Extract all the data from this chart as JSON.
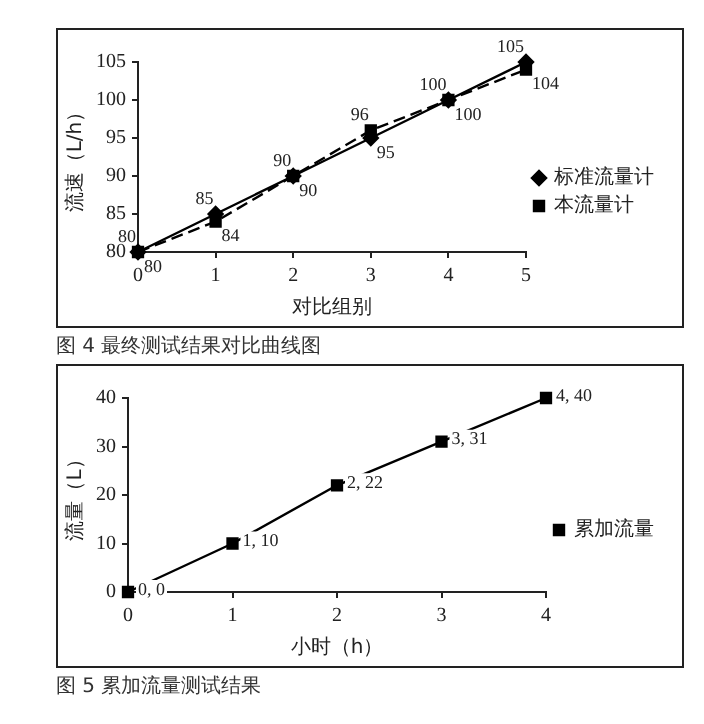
{
  "chart_data": [
    {
      "type": "line",
      "xlabel": "对比组别",
      "ylabel": "流速（L/h）",
      "x": [
        0,
        1,
        2,
        3,
        4,
        5
      ],
      "xlim": [
        0,
        5
      ],
      "xticks": [
        0,
        1,
        2,
        3,
        4,
        5
      ],
      "ylim": [
        80,
        105
      ],
      "yticks": [
        80,
        85,
        90,
        95,
        100,
        105
      ],
      "grid": false,
      "legend": "right",
      "data_labels": true,
      "annotations": [
        "图 4 最终测试结果对比曲线图"
      ],
      "series": [
        {
          "name": "标准流量计",
          "color": "#000000",
          "values": [
            80,
            85,
            90,
            95,
            100,
            105
          ],
          "marker": "diamond",
          "line_style": "solid"
        },
        {
          "name": "本流量计",
          "color": "#000000",
          "values": [
            80,
            84,
            90,
            96,
            100,
            104
          ],
          "marker": "square",
          "line_style": "dashed"
        }
      ]
    },
    {
      "type": "line",
      "xlabel": "小时（h）",
      "ylabel": "流量（L）",
      "x": [
        0,
        1,
        2,
        3,
        4
      ],
      "xlim": [
        0,
        4
      ],
      "xticks": [
        0,
        1,
        2,
        3,
        4
      ],
      "ylim": [
        0,
        40
      ],
      "yticks": [
        0,
        10,
        20,
        30,
        40
      ],
      "grid": false,
      "legend": "right",
      "annotations": [
        "图 5 累加流量测试结果"
      ],
      "series": [
        {
          "name": "累加流量",
          "color": "#000000",
          "values": [
            0,
            10,
            22,
            31,
            40
          ],
          "value_labels": [
            "0, 0",
            "1, 10",
            "2, 22",
            "3, 31",
            "4, 40"
          ],
          "marker": "square",
          "line_style": "solid"
        }
      ]
    }
  ]
}
